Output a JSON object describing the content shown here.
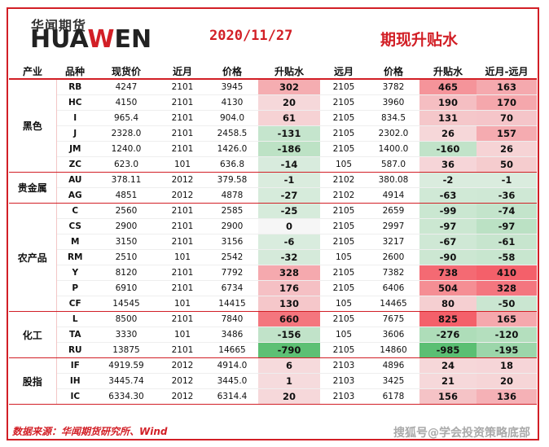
{
  "header": {
    "logo_cn": "华闻期货",
    "logo_en_a": "HUA",
    "logo_en_b": "W",
    "logo_en_c": "EN",
    "date": "2020/11/27",
    "title": "期现升贴水"
  },
  "columns": [
    "产业",
    "品种",
    "现货价",
    "近月",
    "价格",
    "升贴水",
    "远月",
    "价格",
    "升贴水",
    "近月-远月"
  ],
  "colors": {
    "red": "#f4606a",
    "green": "#5bbf73",
    "neutral": "#f6f6f6",
    "accent": "#d21f26"
  },
  "groups": [
    {
      "sector": "黑色",
      "rows": [
        {
          "code": "RB",
          "spot": "4247",
          "near": "2101",
          "near_price": "3945",
          "near_basis": "302",
          "far": "2105",
          "far_price": "3782",
          "far_basis": "465",
          "spread": "163"
        },
        {
          "code": "HC",
          "spot": "4150",
          "near": "2101",
          "near_price": "4130",
          "near_basis": "20",
          "far": "2105",
          "far_price": "3960",
          "far_basis": "190",
          "spread": "170"
        },
        {
          "code": "I",
          "spot": "965.4",
          "near": "2101",
          "near_price": "904.0",
          "near_basis": "61",
          "far": "2105",
          "far_price": "834.5",
          "far_basis": "131",
          "spread": "70"
        },
        {
          "code": "J",
          "spot": "2328.0",
          "near": "2101",
          "near_price": "2458.5",
          "near_basis": "-131",
          "far": "2105",
          "far_price": "2302.0",
          "far_basis": "26",
          "spread": "157"
        },
        {
          "code": "JM",
          "spot": "1240.0",
          "near": "2101",
          "near_price": "1426.0",
          "near_basis": "-186",
          "far": "2105",
          "far_price": "1400.0",
          "far_basis": "-160",
          "spread": "26"
        },
        {
          "code": "ZC",
          "spot": "623.0",
          "near": "101",
          "near_price": "636.8",
          "near_basis": "-14",
          "far": "105",
          "far_price": "587.0",
          "far_basis": "36",
          "spread": "50"
        }
      ]
    },
    {
      "sector": "贵金属",
      "rows": [
        {
          "code": "AU",
          "spot": "378.11",
          "near": "2012",
          "near_price": "379.58",
          "near_basis": "-1",
          "far": "2102",
          "far_price": "380.08",
          "far_basis": "-2",
          "spread": "-1"
        },
        {
          "code": "AG",
          "spot": "4851",
          "near": "2012",
          "near_price": "4878",
          "near_basis": "-27",
          "far": "2102",
          "far_price": "4914",
          "far_basis": "-63",
          "spread": "-36"
        }
      ]
    },
    {
      "sector": "农产品",
      "rows": [
        {
          "code": "C",
          "spot": "2560",
          "near": "2101",
          "near_price": "2585",
          "near_basis": "-25",
          "far": "2105",
          "far_price": "2659",
          "far_basis": "-99",
          "spread": "-74"
        },
        {
          "code": "CS",
          "spot": "2900",
          "near": "2101",
          "near_price": "2900",
          "near_basis": "0",
          "far": "2105",
          "far_price": "2997",
          "far_basis": "-97",
          "spread": "-97"
        },
        {
          "code": "M",
          "spot": "3150",
          "near": "2101",
          "near_price": "3156",
          "near_basis": "-6",
          "far": "2105",
          "far_price": "3217",
          "far_basis": "-67",
          "spread": "-61"
        },
        {
          "code": "RM",
          "spot": "2510",
          "near": "101",
          "near_price": "2542",
          "near_basis": "-32",
          "far": "105",
          "far_price": "2600",
          "far_basis": "-90",
          "spread": "-58"
        },
        {
          "code": "Y",
          "spot": "8120",
          "near": "2101",
          "near_price": "7792",
          "near_basis": "328",
          "far": "2105",
          "far_price": "7382",
          "far_basis": "738",
          "spread": "410"
        },
        {
          "code": "P",
          "spot": "6910",
          "near": "2101",
          "near_price": "6734",
          "near_basis": "176",
          "far": "2105",
          "far_price": "6406",
          "far_basis": "504",
          "spread": "328"
        },
        {
          "code": "CF",
          "spot": "14545",
          "near": "101",
          "near_price": "14415",
          "near_basis": "130",
          "far": "105",
          "far_price": "14465",
          "far_basis": "80",
          "spread": "-50"
        }
      ]
    },
    {
      "sector": "化工",
      "rows": [
        {
          "code": "L",
          "spot": "8500",
          "near": "2101",
          "near_price": "7840",
          "near_basis": "660",
          "far": "2105",
          "far_price": "7675",
          "far_basis": "825",
          "spread": "165"
        },
        {
          "code": "TA",
          "spot": "3330",
          "near": "101",
          "near_price": "3486",
          "near_basis": "-156",
          "far": "105",
          "far_price": "3606",
          "far_basis": "-276",
          "spread": "-120"
        },
        {
          "code": "RU",
          "spot": "13875",
          "near": "2101",
          "near_price": "14665",
          "near_basis": "-790",
          "far": "2105",
          "far_price": "14860",
          "far_basis": "-985",
          "spread": "-195"
        }
      ]
    },
    {
      "sector": "股指",
      "rows": [
        {
          "code": "IF",
          "spot": "4919.59",
          "near": "2012",
          "near_price": "4914.0",
          "near_basis": "6",
          "far": "2103",
          "far_price": "4896",
          "far_basis": "24",
          "spread": "18"
        },
        {
          "code": "IH",
          "spot": "3445.74",
          "near": "2012",
          "near_price": "3445.0",
          "near_basis": "1",
          "far": "2103",
          "far_price": "3425",
          "far_basis": "21",
          "spread": "20"
        },
        {
          "code": "IC",
          "spot": "6334.30",
          "near": "2012",
          "near_price": "6314.4",
          "near_basis": "20",
          "far": "2103",
          "far_price": "6178",
          "far_basis": "156",
          "spread": "136"
        }
      ]
    }
  ],
  "footer": {
    "source": "数据来源：华闻期货研究所、Wind",
    "watermark": "搜狐号@学会投资策略底部"
  }
}
